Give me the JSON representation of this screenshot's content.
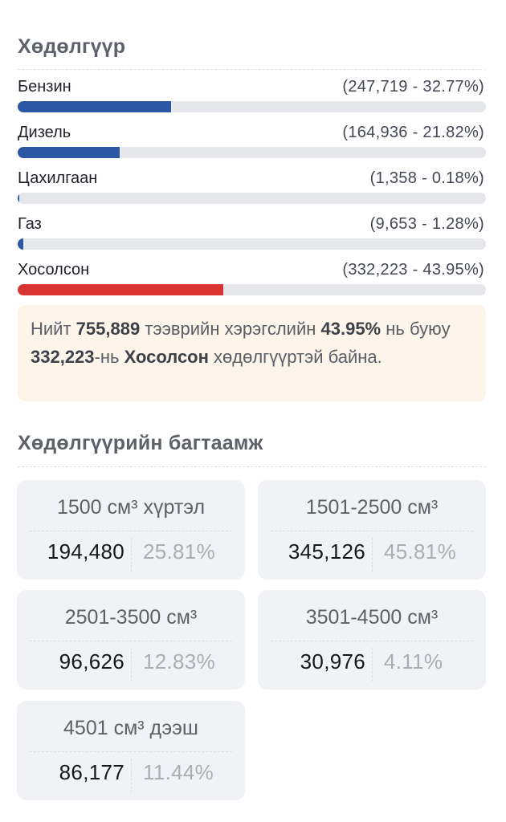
{
  "engine": {
    "title": "Хөдөлгүүр",
    "items": [
      {
        "label": "Бензин",
        "value": "(247,719 - 32.77%)",
        "share": 0.3277,
        "color": "#2b57a4"
      },
      {
        "label": "Дизель",
        "value": "(164,936 - 21.82%)",
        "share": 0.2182,
        "color": "#2b57a4"
      },
      {
        "label": "Цахилгаан",
        "value": "(1,358 - 0.18%)",
        "share": 0.0018,
        "color": "#2b57a4"
      },
      {
        "label": "Газ",
        "value": "(9,653 - 1.28%)",
        "share": 0.0128,
        "color": "#2b57a4"
      },
      {
        "label": "Хосолсон",
        "value": "(332,223 - 43.95%)",
        "share": 0.4395,
        "color": "#d93432"
      }
    ]
  },
  "summary": {
    "t1": "Нийт ",
    "total": "755,889",
    "t2": " тээврийн хэрэгслийн ",
    "pct": "43.95%",
    "t3": " нь буюу ",
    "count": "332,223",
    "t4": "-нь ",
    "type": "Хосолсон",
    "t5": " хөдөлгүүртэй байна."
  },
  "capacity": {
    "title": "Хөдөлгүүрийн багтаамж",
    "cards": [
      {
        "label": "1500 см³ хүртэл",
        "count": "194,480",
        "pct": "25.81%"
      },
      {
        "label": "1501-2500 см³",
        "count": "345,126",
        "pct": "45.81%"
      },
      {
        "label": "2501-3500 см³",
        "count": "96,626",
        "pct": "12.83%"
      },
      {
        "label": "3501-4500 см³",
        "count": "30,976",
        "pct": "4.11%"
      },
      {
        "label": "4501 см³ дээш",
        "count": "86,177",
        "pct": "11.44%"
      }
    ]
  }
}
